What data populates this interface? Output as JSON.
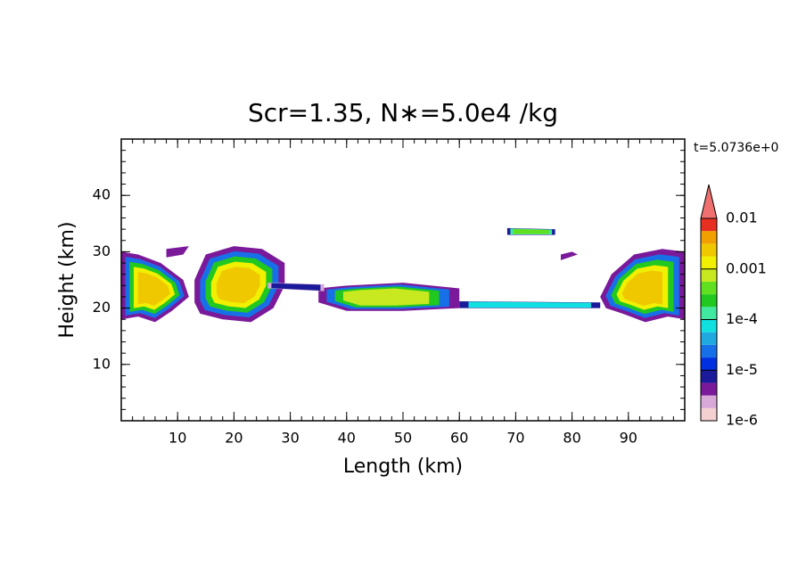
{
  "chart_data": {
    "type": "contour",
    "title": "Scr=1.35, N∗=5.0e4 /kg",
    "annotation": "t=5.0736e+0",
    "x_label": "Length  (km)",
    "y_label": "Height  (km)",
    "xlim": [
      0,
      100
    ],
    "ylim": [
      0,
      50
    ],
    "xticks": [
      10,
      20,
      30,
      40,
      50,
      60,
      70,
      80,
      90
    ],
    "yticks": [
      10,
      20,
      30,
      40
    ],
    "colorbar": {
      "log_scale": true,
      "lim": [
        1e-06,
        0.01
      ],
      "ticks": [
        {
          "value": 1e-06,
          "label": "1e-6"
        },
        {
          "value": 1e-05,
          "label": "1e-5"
        },
        {
          "value": 0.0001,
          "label": "1e-4"
        },
        0.001,
        0.01
      ],
      "colors": [
        "#f5d0d0",
        "#d8a8d8",
        "#7a1a9a",
        "#1a1a9a",
        "#0030e0",
        "#1870e8",
        "#20a8e0",
        "#10e0e0",
        "#40e8a0",
        "#20c820",
        "#60e020",
        "#c8e820",
        "#f0f000",
        "#f0c800",
        "#f0a000",
        "#e83020"
      ],
      "extend_color": "#f07070"
    }
  }
}
